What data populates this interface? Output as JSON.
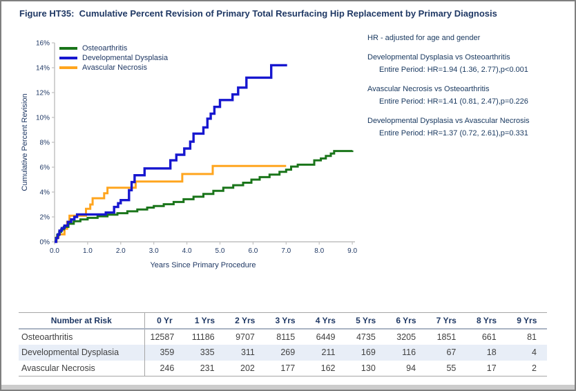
{
  "title": "Figure HT35:  Cumulative Percent Revision of Primary Total Resurfacing Hip Replacement by Primary Diagnosis",
  "colors": {
    "heading_navy": "#1F3864",
    "annotation_navy": "#17375E",
    "axis_gray": "#BFBFBF",
    "osteoarthritis_green": "#1A751A",
    "dysplasia_blue": "#1717CF",
    "necrosis_orange": "#FFA51E",
    "shaded_row": "#E8EEF7",
    "table_line": "#A6A6A6"
  },
  "chart_data": {
    "type": "line",
    "subtype": "step-after",
    "title": "",
    "xlabel": "Years Since Primary Procedure",
    "ylabel": "Cumulative Percent Revision",
    "xlim": [
      0,
      9
    ],
    "ylim": [
      0,
      16
    ],
    "grid": false,
    "legend_position": "top-left",
    "x_ticks": [
      "0.0",
      "1.0",
      "2.0",
      "3.0",
      "4.0",
      "5.0",
      "6.0",
      "7.0",
      "8.0",
      "9.0"
    ],
    "y_ticks": [
      "0%",
      "2%",
      "4%",
      "6%",
      "8%",
      "10%",
      "12%",
      "14%",
      "16%"
    ],
    "y_unit": "percent",
    "series": [
      {
        "name": "Osteoarthritis",
        "color": "#1A751A",
        "points": [
          [
            0,
            0
          ],
          [
            0.04,
            0.3
          ],
          [
            0.08,
            0.55
          ],
          [
            0.14,
            0.8
          ],
          [
            0.2,
            1.0
          ],
          [
            0.28,
            1.2
          ],
          [
            0.42,
            1.45
          ],
          [
            0.58,
            1.65
          ],
          [
            0.78,
            1.8
          ],
          [
            1.0,
            1.92
          ],
          [
            1.3,
            2.05
          ],
          [
            1.6,
            2.18
          ],
          [
            1.9,
            2.3
          ],
          [
            2.2,
            2.45
          ],
          [
            2.5,
            2.6
          ],
          [
            2.8,
            2.75
          ],
          [
            3.0,
            2.87
          ],
          [
            3.3,
            3.02
          ],
          [
            3.6,
            3.2
          ],
          [
            3.9,
            3.42
          ],
          [
            4.2,
            3.62
          ],
          [
            4.5,
            3.85
          ],
          [
            4.8,
            4.1
          ],
          [
            5.1,
            4.35
          ],
          [
            5.4,
            4.55
          ],
          [
            5.7,
            4.75
          ],
          [
            5.95,
            5.0
          ],
          [
            6.2,
            5.2
          ],
          [
            6.5,
            5.4
          ],
          [
            6.8,
            5.62
          ],
          [
            7.0,
            5.8
          ],
          [
            7.15,
            6.05
          ],
          [
            7.35,
            6.2
          ],
          [
            7.85,
            6.55
          ],
          [
            8.05,
            6.7
          ],
          [
            8.2,
            6.9
          ],
          [
            8.35,
            7.1
          ],
          [
            8.45,
            7.3
          ],
          [
            9.0,
            7.35
          ]
        ]
      },
      {
        "name": "Developmental Dysplasia",
        "color": "#1717CF",
        "points": [
          [
            0,
            0
          ],
          [
            0.05,
            0.3
          ],
          [
            0.1,
            0.6
          ],
          [
            0.15,
            0.9
          ],
          [
            0.22,
            1.1
          ],
          [
            0.3,
            1.3
          ],
          [
            0.4,
            1.6
          ],
          [
            0.5,
            1.8
          ],
          [
            0.6,
            2.0
          ],
          [
            0.68,
            2.2
          ],
          [
            1.55,
            2.35
          ],
          [
            1.8,
            2.8
          ],
          [
            1.92,
            3.1
          ],
          [
            2.0,
            3.35
          ],
          [
            2.25,
            4.15
          ],
          [
            2.33,
            4.8
          ],
          [
            2.42,
            5.35
          ],
          [
            2.72,
            5.9
          ],
          [
            3.5,
            6.55
          ],
          [
            3.68,
            7.0
          ],
          [
            3.92,
            7.5
          ],
          [
            4.1,
            8.05
          ],
          [
            4.2,
            8.7
          ],
          [
            4.5,
            9.2
          ],
          [
            4.62,
            9.9
          ],
          [
            4.72,
            10.3
          ],
          [
            4.83,
            10.85
          ],
          [
            5.0,
            11.4
          ],
          [
            5.38,
            11.85
          ],
          [
            5.55,
            12.4
          ],
          [
            5.8,
            13.2
          ],
          [
            6.55,
            14.2
          ],
          [
            7.03,
            14.2
          ]
        ]
      },
      {
        "name": "Avascular Necrosis",
        "color": "#FFA51E",
        "points": [
          [
            0,
            0
          ],
          [
            0.06,
            0.35
          ],
          [
            0.12,
            0.6
          ],
          [
            0.3,
            1.05
          ],
          [
            0.38,
            1.6
          ],
          [
            0.45,
            2.1
          ],
          [
            0.95,
            2.65
          ],
          [
            1.08,
            3.0
          ],
          [
            1.15,
            3.5
          ],
          [
            1.5,
            3.9
          ],
          [
            1.6,
            4.35
          ],
          [
            2.45,
            4.85
          ],
          [
            3.86,
            5.45
          ],
          [
            4.78,
            6.1
          ],
          [
            7.0,
            6.1
          ]
        ]
      }
    ]
  },
  "hr_panel": {
    "heading": "HR - adjusted for age and gender",
    "comparisons": [
      {
        "label": "Developmental Dysplasia vs Osteoarthritis",
        "detail": "Entire Period: HR=1.94 (1.36, 2.77),p<0.001"
      },
      {
        "label": "Avascular Necrosis vs Osteoarthritis",
        "detail": "Entire Period: HR=1.41 (0.81, 2.47),p=0.226"
      },
      {
        "label": "Developmental Dysplasia vs Avascular Necrosis",
        "detail": "Entire Period: HR=1.37 (0.72, 2.61),p=0.331"
      }
    ]
  },
  "risk_table": {
    "header": [
      "Number at Risk",
      "0 Yr",
      "1 Yrs",
      "2 Yrs",
      "3 Yrs",
      "4 Yrs",
      "5 Yrs",
      "6 Yrs",
      "7 Yrs",
      "8 Yrs",
      "9 Yrs"
    ],
    "rows": [
      {
        "label": "Osteoarthritis",
        "shaded": false,
        "values": [
          12587,
          11186,
          9707,
          8115,
          6449,
          4735,
          3205,
          1851,
          661,
          81
        ]
      },
      {
        "label": "Developmental Dysplasia",
        "shaded": true,
        "values": [
          359,
          335,
          311,
          269,
          211,
          169,
          116,
          67,
          18,
          4
        ]
      },
      {
        "label": "Avascular Necrosis",
        "shaded": false,
        "values": [
          246,
          231,
          202,
          177,
          162,
          130,
          94,
          55,
          17,
          2
        ]
      }
    ]
  }
}
